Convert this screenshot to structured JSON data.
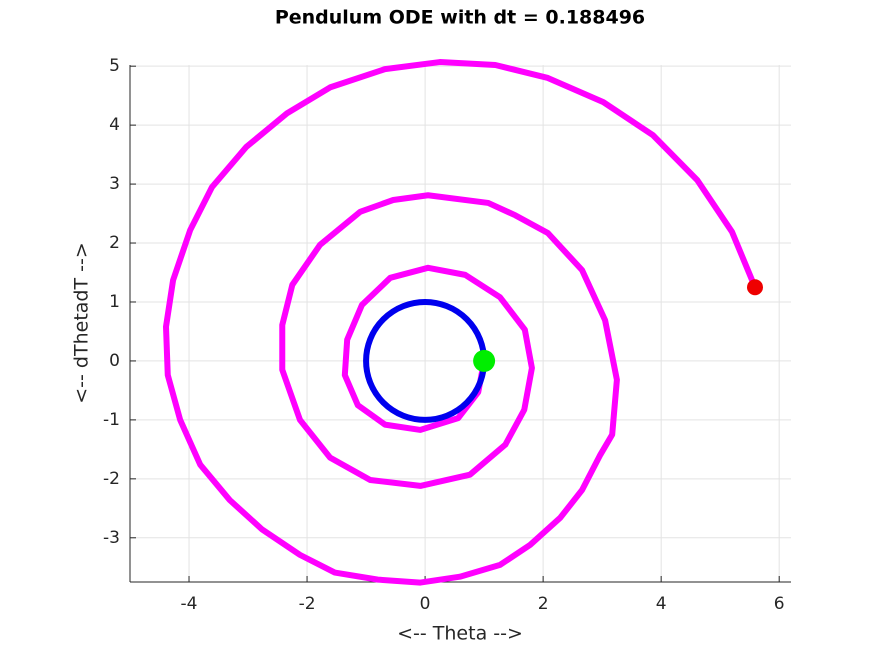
{
  "chart_data": {
    "type": "line",
    "title": "Pendulum ODE with dt = 0.188496",
    "xlabel": "<-- Theta -->",
    "ylabel": "<-- dThetadT -->",
    "xlim": [
      -5,
      6.2
    ],
    "ylim": [
      -3.75,
      5.02
    ],
    "xticks": [
      -4,
      -2,
      0,
      2,
      4,
      6
    ],
    "yticks": [
      -3,
      -2,
      -1,
      0,
      1,
      2,
      3,
      4,
      5
    ],
    "grid": true,
    "series": [
      {
        "color": "#ff00ff",
        "x": [
          1.0,
          0.9,
          0.56,
          -0.08,
          -0.68,
          -1.14,
          -1.36,
          -1.32,
          -1.07,
          -0.59,
          0.05,
          0.68,
          1.27,
          1.69,
          1.81,
          1.68,
          1.36,
          0.76,
          -0.08,
          -0.93,
          -1.61,
          -2.12,
          -2.42,
          -2.42,
          -2.25,
          -1.78,
          -1.1,
          -0.54,
          0.05,
          1.07,
          1.53,
          2.08,
          2.66,
          3.05,
          3.25,
          3.17,
          2.97,
          2.66,
          2.29,
          1.78,
          1.27,
          0.59,
          -0.08,
          -0.8,
          -1.53,
          -2.12,
          -2.76,
          -3.31,
          -3.81,
          -4.15,
          -4.36,
          -4.39,
          -4.27,
          -3.98,
          -3.61,
          -3.03,
          -2.34,
          -1.61,
          -0.68,
          0.25,
          1.19,
          2.08,
          3.02,
          3.86,
          4.61,
          5.2,
          5.59
        ],
        "y": [
          0,
          -0.53,
          -0.97,
          -1.17,
          -1.08,
          -0.75,
          -0.24,
          0.36,
          0.95,
          1.41,
          1.58,
          1.46,
          1.08,
          0.53,
          -0.12,
          -0.83,
          -1.42,
          -1.93,
          -2.12,
          -2.02,
          -1.64,
          -1.0,
          -0.15,
          0.61,
          1.29,
          1.97,
          2.53,
          2.73,
          2.81,
          2.68,
          2.47,
          2.17,
          1.54,
          0.69,
          -0.32,
          -1.25,
          -1.59,
          -2.19,
          -2.66,
          -3.12,
          -3.46,
          -3.66,
          -3.76,
          -3.71,
          -3.59,
          -3.29,
          -2.86,
          -2.36,
          -1.76,
          -1.0,
          -0.24,
          0.58,
          1.37,
          2.22,
          2.95,
          3.63,
          4.2,
          4.64,
          4.95,
          5.07,
          5.02,
          4.8,
          4.39,
          3.83,
          3.07,
          2.19,
          1.25
        ]
      }
    ],
    "circle": {
      "center": [
        0,
        0
      ],
      "radius": 1,
      "color": "#0000ee"
    },
    "markers": [
      {
        "x": 1,
        "y": 0,
        "color": "#00ee00"
      },
      {
        "x": 5.59,
        "y": 1.25,
        "color": "#ee0000"
      }
    ]
  }
}
